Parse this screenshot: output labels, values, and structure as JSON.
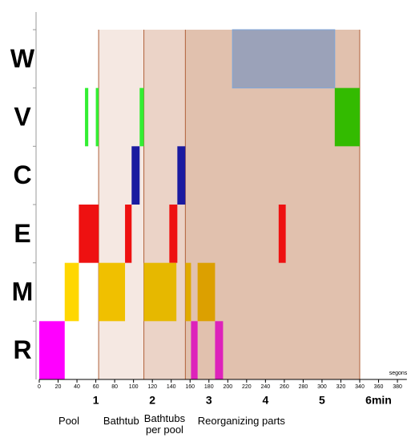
{
  "chart_data": {
    "type": "timeline",
    "rows": [
      "W",
      "V",
      "C",
      "E",
      "M",
      "R"
    ],
    "xlim": [
      0,
      390
    ],
    "xticks": [
      0,
      20,
      40,
      60,
      80,
      100,
      120,
      140,
      160,
      180,
      200,
      220,
      240,
      260,
      280,
      300,
      320,
      340,
      360,
      380
    ],
    "xlabel": "segons",
    "minute_ticks": [
      {
        "value": 60,
        "label": "1"
      },
      {
        "value": 120,
        "label": "2"
      },
      {
        "value": 180,
        "label": "3"
      },
      {
        "value": 240,
        "label": "4"
      },
      {
        "value": 300,
        "label": "5"
      },
      {
        "value": 360,
        "label": "6min"
      }
    ],
    "phases": [
      {
        "name": "Pool",
        "start": 0,
        "end": 63,
        "color": "#ffffff"
      },
      {
        "name": "Bathtub",
        "start": 63,
        "end": 111,
        "color": "#f5e8e2"
      },
      {
        "name": "Bathtubs per pool",
        "start": 111,
        "end": 155,
        "color": "#ebd3c7"
      },
      {
        "name": "Reorganizing parts",
        "start": 155,
        "end": 340,
        "color": "#e1c1ae"
      }
    ],
    "tasks": [
      {
        "row": "W",
        "start": 205,
        "end": 313.5,
        "color": "#9ba2b9"
      },
      {
        "row": "V",
        "start": 48.5,
        "end": 52,
        "color": "#33ee33"
      },
      {
        "row": "V",
        "start": 60,
        "end": 63,
        "color": "#33ee33"
      },
      {
        "row": "V",
        "start": 106.5,
        "end": 111,
        "color": "#33ee33"
      },
      {
        "row": "V",
        "start": 313.5,
        "end": 340,
        "color": "#33bb00"
      },
      {
        "row": "C",
        "start": 98,
        "end": 106.5,
        "color": "#1a1aa0"
      },
      {
        "row": "C",
        "start": 146.5,
        "end": 155,
        "color": "#1a1aa0"
      },
      {
        "row": "E",
        "start": 42,
        "end": 63,
        "color": "#ee1111"
      },
      {
        "row": "E",
        "start": 91,
        "end": 98,
        "color": "#ee1111"
      },
      {
        "row": "E",
        "start": 138,
        "end": 146.5,
        "color": "#ee1111"
      },
      {
        "row": "E",
        "start": 254,
        "end": 261.5,
        "color": "#ee1111"
      },
      {
        "row": "M",
        "start": 27,
        "end": 42,
        "color": "#ffd700"
      },
      {
        "row": "M",
        "start": 63,
        "end": 91,
        "color": "#f0c000"
      },
      {
        "row": "M",
        "start": 111,
        "end": 145.5,
        "color": "#e6b800"
      },
      {
        "row": "M",
        "start": 155,
        "end": 161,
        "color": "#e0aa00"
      },
      {
        "row": "M",
        "start": 168,
        "end": 186.5,
        "color": "#dca000"
      },
      {
        "row": "R",
        "start": 0,
        "end": 27,
        "color": "#ff00ff"
      },
      {
        "row": "R",
        "start": 161,
        "end": 168,
        "color": "#dd22bb"
      },
      {
        "row": "R",
        "start": 186.5,
        "end": 195,
        "color": "#dd22bb"
      }
    ]
  }
}
